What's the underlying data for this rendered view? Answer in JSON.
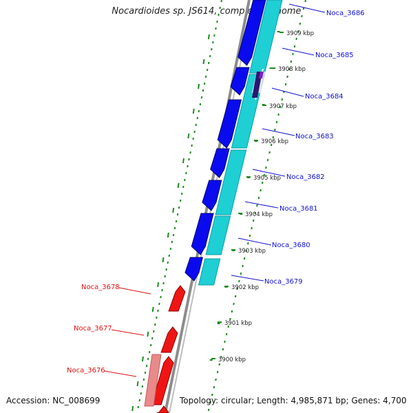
{
  "title": "Nocardioides sp. JS614, complete genome",
  "accession": "Accession: NC_008699",
  "summary": "Topology: circular; Length: 4,985,871 bp; Genes: 4,700",
  "colors": {
    "forward_gene": "#0a0aee",
    "cds_cyan": "#1ecfd4",
    "reverse_gene": "#f01515",
    "reverse_pale": "#e98a8a",
    "backbone": "#8c8c8c",
    "tick_green": "#1d8a1d",
    "label_blue": "#1010cc",
    "label_red": "#dd1111",
    "highlight_purple": "#7a22c8"
  },
  "scale_labels": [
    "3909 kbp",
    "3908 kbp",
    "3907 kbp",
    "3906 kbp",
    "3905 kbp",
    "3904 kbp",
    "3903 kbp",
    "3902 kbp",
    "3901 kbp",
    "3900 kbp"
  ],
  "genes_forward": [
    "Noca_3686",
    "Noca_3685",
    "Noca_3684",
    "Noca_3683",
    "Noca_3682",
    "Noca_3681",
    "Noca_3680",
    "Noca_3679"
  ],
  "genes_reverse": [
    "Noca_3678",
    "Noca_3677",
    "Noca_3676"
  ]
}
